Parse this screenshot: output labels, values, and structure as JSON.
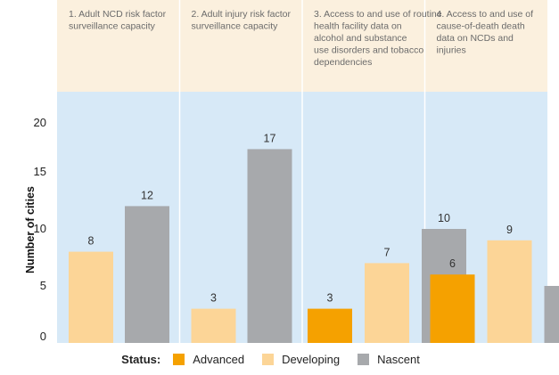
{
  "chart_data": {
    "type": "bar",
    "title": "",
    "xlabel": "",
    "ylabel": "Number of cities",
    "ylim": [
      0,
      20
    ],
    "yticks": [
      0,
      5,
      10,
      15,
      20
    ],
    "grid": false,
    "legend_position": "bottom",
    "legend_title": "Status:",
    "categories": [
      "1. Adult NCD risk factor surveillance capacity",
      "2. Adult injury risk factor surveillance capacity",
      "3. Access to and use of routine health facility data on alcohol and substance use disorders and tobacco dependencies",
      "4. Access to and use of cause-of-death death data on NCDs and injuries"
    ],
    "category_lines": [
      [
        "1.  Adult NCD risk factor",
        "     surveillance capacity"
      ],
      [
        "2.  Adult injury risk factor",
        "     surveillance capacity"
      ],
      [
        "3.  Access to and use of routine",
        "     health facility data on",
        "     alcohol and substance",
        "     use disorders and tobacco",
        "     dependencies"
      ],
      [
        "4.  Access to and use of",
        "     cause-of-death death",
        "     data on NCDs and",
        "     injuries"
      ]
    ],
    "series": [
      {
        "name": "Advanced",
        "color": "#f5a100",
        "values": [
          null,
          null,
          3,
          6
        ]
      },
      {
        "name": "Developing",
        "color": "#fcd597",
        "values": [
          8,
          3,
          7,
          9
        ]
      },
      {
        "name": "Nascent",
        "color": "#a7a9ac",
        "values": [
          12,
          17,
          10,
          5
        ]
      }
    ]
  },
  "colors": {
    "header_bg": "#fbf0de",
    "plot_bg": "#d7e9f7",
    "divider": "#ffffff"
  }
}
